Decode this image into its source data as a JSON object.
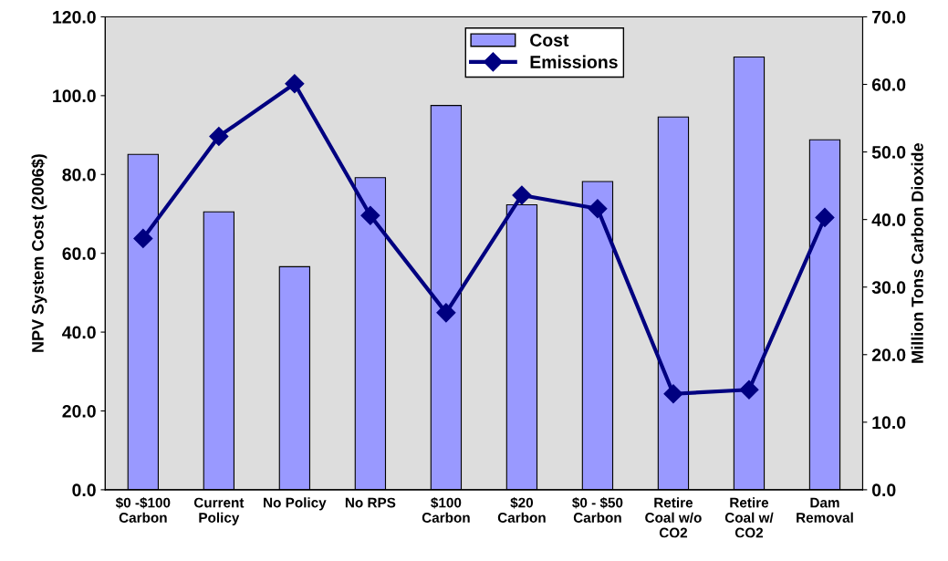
{
  "chart_data": {
    "type": "bar",
    "ylabel": "NPV System Cost (2006$)",
    "y2label": "Million Tons Carbon Dioxide",
    "categories": [
      "$0 -$100\nCarbon",
      "Current\nPolicy",
      "No Policy",
      "No RPS",
      "$100\nCarbon",
      "$20\nCarbon",
      "$0 - $50\nCarbon",
      "Retire\nCoal w/o\nCO2",
      "Retire\nCoal w/\nCO2",
      "Dam\nRemoval"
    ],
    "series": [
      {
        "name": "Cost",
        "color": "#9999ff",
        "values": [
          85.1,
          70.5,
          56.6,
          79.2,
          97.5,
          72.3,
          78.2,
          94.6,
          109.8,
          88.8
        ]
      },
      {
        "name": "Emissions",
        "type": "line",
        "axis": "y2",
        "color": "#000080",
        "marker": "diamond",
        "values": [
          37.2,
          52.3,
          60.1,
          40.6,
          26.2,
          43.6,
          41.6,
          14.2,
          14.8,
          40.3
        ]
      }
    ],
    "ylim": [
      0,
      120
    ],
    "yticks": [
      {
        "value": 0,
        "label": "0.0"
      },
      {
        "value": 20,
        "label": "20.0"
      },
      {
        "value": 40,
        "label": "40.0"
      },
      {
        "value": 60,
        "label": "60.0"
      },
      {
        "value": 80,
        "label": "80.0"
      },
      {
        "value": 100,
        "label": "100.0"
      },
      {
        "value": 120,
        "label": "120.0"
      }
    ],
    "y2lim": [
      0,
      70
    ],
    "y2ticks": [
      {
        "value": 0,
        "label": "0.0"
      },
      {
        "value": 10,
        "label": "10.0"
      },
      {
        "value": 20,
        "label": "20.0"
      },
      {
        "value": 30,
        "label": "30.0"
      },
      {
        "value": 40,
        "label": "40.0"
      },
      {
        "value": 50,
        "label": "50.0"
      },
      {
        "value": 60,
        "label": "60.0"
      },
      {
        "value": 70,
        "label": "70.0"
      }
    ],
    "grid": false,
    "legend": "top"
  }
}
